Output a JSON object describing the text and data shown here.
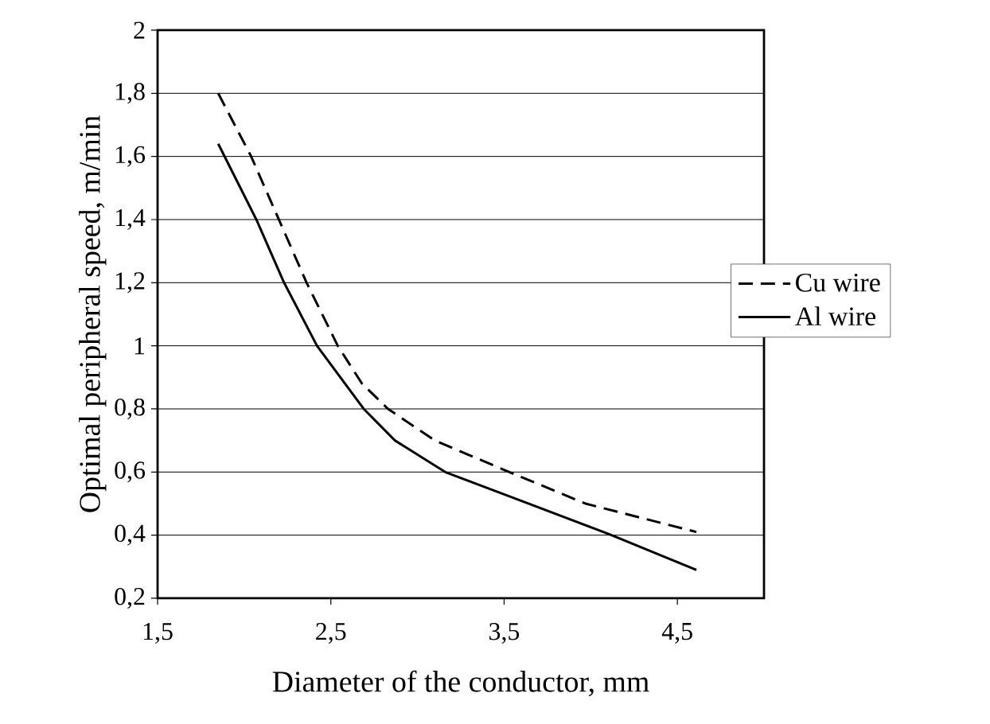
{
  "chart_data": {
    "type": "line",
    "xlabel": "Diameter of the conductor, mm",
    "ylabel": "Optimal peripheral speed, m/min",
    "xlim": [
      1.5,
      5
    ],
    "ylim": [
      0.2,
      2
    ],
    "xticks": [
      {
        "value": 1.5,
        "label": "1,5"
      },
      {
        "value": 2.5,
        "label": "2,5"
      },
      {
        "value": 3.5,
        "label": "3,5"
      },
      {
        "value": 4.5,
        "label": "4,5"
      }
    ],
    "yticks": [
      {
        "value": 0.2,
        "label": "0,2"
      },
      {
        "value": 0.4,
        "label": "0,4"
      },
      {
        "value": 0.6,
        "label": "0,6"
      },
      {
        "value": 0.8,
        "label": "0,8"
      },
      1,
      {
        "value": 1.2,
        "label": "1,2"
      },
      {
        "value": 1.4,
        "label": "1,4"
      },
      {
        "value": 1.6,
        "label": "1,6"
      },
      {
        "value": 1.8,
        "label": "1,8"
      },
      2
    ],
    "grid": "y",
    "legend": "right",
    "marker": "none",
    "series": [
      {
        "name": "Cu wire",
        "color": "#000000",
        "line_style": "dashed",
        "x": [
          1.85,
          2.04,
          2.2,
          2.36,
          2.54,
          2.68,
          2.83,
          3.1,
          3.53,
          3.97,
          4.61
        ],
        "values": [
          1.8,
          1.6,
          1.4,
          1.2,
          1.0,
          0.88,
          0.8,
          0.7,
          0.6,
          0.5,
          0.41
        ]
      },
      {
        "name": "Al wire",
        "color": "#000000",
        "line_style": "solid",
        "x": [
          1.85,
          2.07,
          2.23,
          2.42,
          2.69,
          2.87,
          3.16,
          3.64,
          4.12,
          4.61
        ],
        "values": [
          1.64,
          1.4,
          1.2,
          1.0,
          0.8,
          0.7,
          0.6,
          0.5,
          0.4,
          0.29
        ]
      }
    ]
  }
}
